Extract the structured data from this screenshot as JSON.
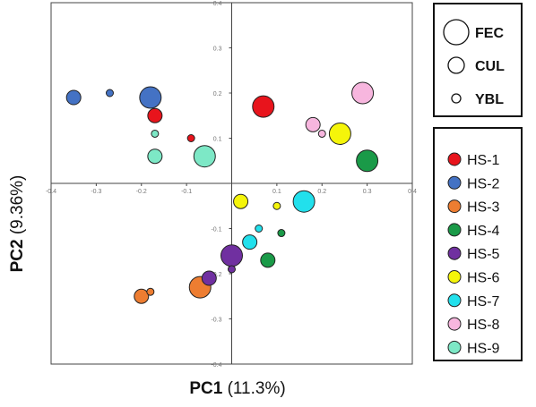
{
  "chart_data": {
    "type": "scatter",
    "xlabel": {
      "prefix": "PC1",
      "suffix": "(11.3%)"
    },
    "ylabel": {
      "prefix": "PC2",
      "suffix": "(9.36%)"
    },
    "xlim": [
      -0.4,
      0.4
    ],
    "ylim": [
      -0.4,
      0.4
    ],
    "x_ticks": [
      "-0.4",
      "-0.3",
      "-0.2",
      "-0.1",
      "0",
      "0.1",
      "0.2",
      "0.3",
      "0.4"
    ],
    "y_ticks": [
      "0.4",
      "0.3",
      "0.2",
      "0.1",
      "0",
      "-0.1",
      "-0.2",
      "-0.3",
      "-0.4"
    ],
    "size_legend": [
      {
        "label": "FEC",
        "size": 3
      },
      {
        "label": "CUL",
        "size": 2
      },
      {
        "label": "YBL",
        "size": 1
      }
    ],
    "series": [
      {
        "name": "HS-1",
        "color": "#e8141c",
        "points": [
          {
            "x": 0.07,
            "y": 0.17,
            "size": 3
          },
          {
            "x": -0.17,
            "y": 0.15,
            "size": 2
          },
          {
            "x": -0.09,
            "y": 0.1,
            "size": 1
          }
        ]
      },
      {
        "name": "HS-2",
        "color": "#4472c4",
        "points": [
          {
            "x": -0.18,
            "y": 0.19,
            "size": 3
          },
          {
            "x": -0.35,
            "y": 0.19,
            "size": 2
          },
          {
            "x": -0.27,
            "y": 0.2,
            "size": 1
          }
        ]
      },
      {
        "name": "HS-3",
        "color": "#ed7d31",
        "points": [
          {
            "x": -0.07,
            "y": -0.23,
            "size": 3
          },
          {
            "x": -0.2,
            "y": -0.25,
            "size": 2
          },
          {
            "x": -0.18,
            "y": -0.24,
            "size": 1
          }
        ]
      },
      {
        "name": "HS-4",
        "color": "#1a9a48",
        "points": [
          {
            "x": 0.3,
            "y": 0.05,
            "size": 3
          },
          {
            "x": 0.08,
            "y": -0.17,
            "size": 2
          },
          {
            "x": 0.11,
            "y": -0.11,
            "size": 1
          }
        ]
      },
      {
        "name": "HS-5",
        "color": "#7030a0",
        "points": [
          {
            "x": 0.0,
            "y": -0.16,
            "size": 3
          },
          {
            "x": -0.05,
            "y": -0.21,
            "size": 2
          },
          {
            "x": 0.0,
            "y": -0.19,
            "size": 1
          }
        ]
      },
      {
        "name": "HS-6",
        "color": "#f5f50a",
        "points": [
          {
            "x": 0.24,
            "y": 0.11,
            "size": 3
          },
          {
            "x": 0.02,
            "y": -0.04,
            "size": 2
          },
          {
            "x": 0.1,
            "y": -0.05,
            "size": 1
          }
        ]
      },
      {
        "name": "HS-7",
        "color": "#22e0ec",
        "points": [
          {
            "x": 0.16,
            "y": -0.04,
            "size": 3
          },
          {
            "x": 0.04,
            "y": -0.13,
            "size": 2
          },
          {
            "x": 0.06,
            "y": -0.1,
            "size": 1
          }
        ]
      },
      {
        "name": "HS-8",
        "color": "#f7b6de",
        "points": [
          {
            "x": 0.29,
            "y": 0.2,
            "size": 3
          },
          {
            "x": 0.18,
            "y": 0.13,
            "size": 2
          },
          {
            "x": 0.2,
            "y": 0.11,
            "size": 1
          }
        ]
      },
      {
        "name": "HS-9",
        "color": "#7de8c6",
        "points": [
          {
            "x": -0.06,
            "y": 0.06,
            "size": 3
          },
          {
            "x": -0.17,
            "y": 0.06,
            "size": 2
          },
          {
            "x": -0.17,
            "y": 0.11,
            "size": 1
          }
        ]
      }
    ]
  }
}
